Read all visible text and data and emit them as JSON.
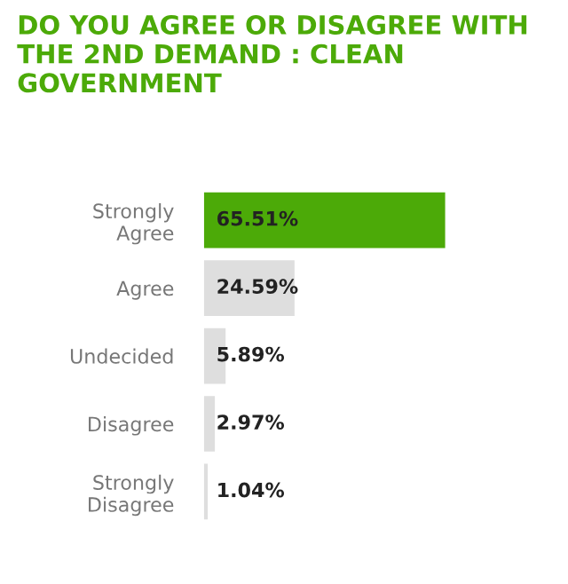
{
  "chart_data": {
    "type": "bar",
    "orientation": "horizontal",
    "title": "DO YOU AGREE OR DISAGREE WITH THE 2ND DEMAND : CLEAN GOVERNMENT",
    "categories": [
      "Strongly\nAgree",
      "Agree",
      "Undecided",
      "Disagree",
      "Strongly\nDisagree"
    ],
    "values": [
      65.51,
      24.59,
      5.89,
      2.97,
      1.04
    ],
    "colors": [
      "#4caa08",
      "#dedede",
      "#dedede",
      "#dedede",
      "#dedede"
    ],
    "value_labels": [
      "65.51%",
      "24.59%",
      "5.89%",
      "2.97%",
      "1.04%"
    ],
    "grid": false,
    "legend": false
  }
}
